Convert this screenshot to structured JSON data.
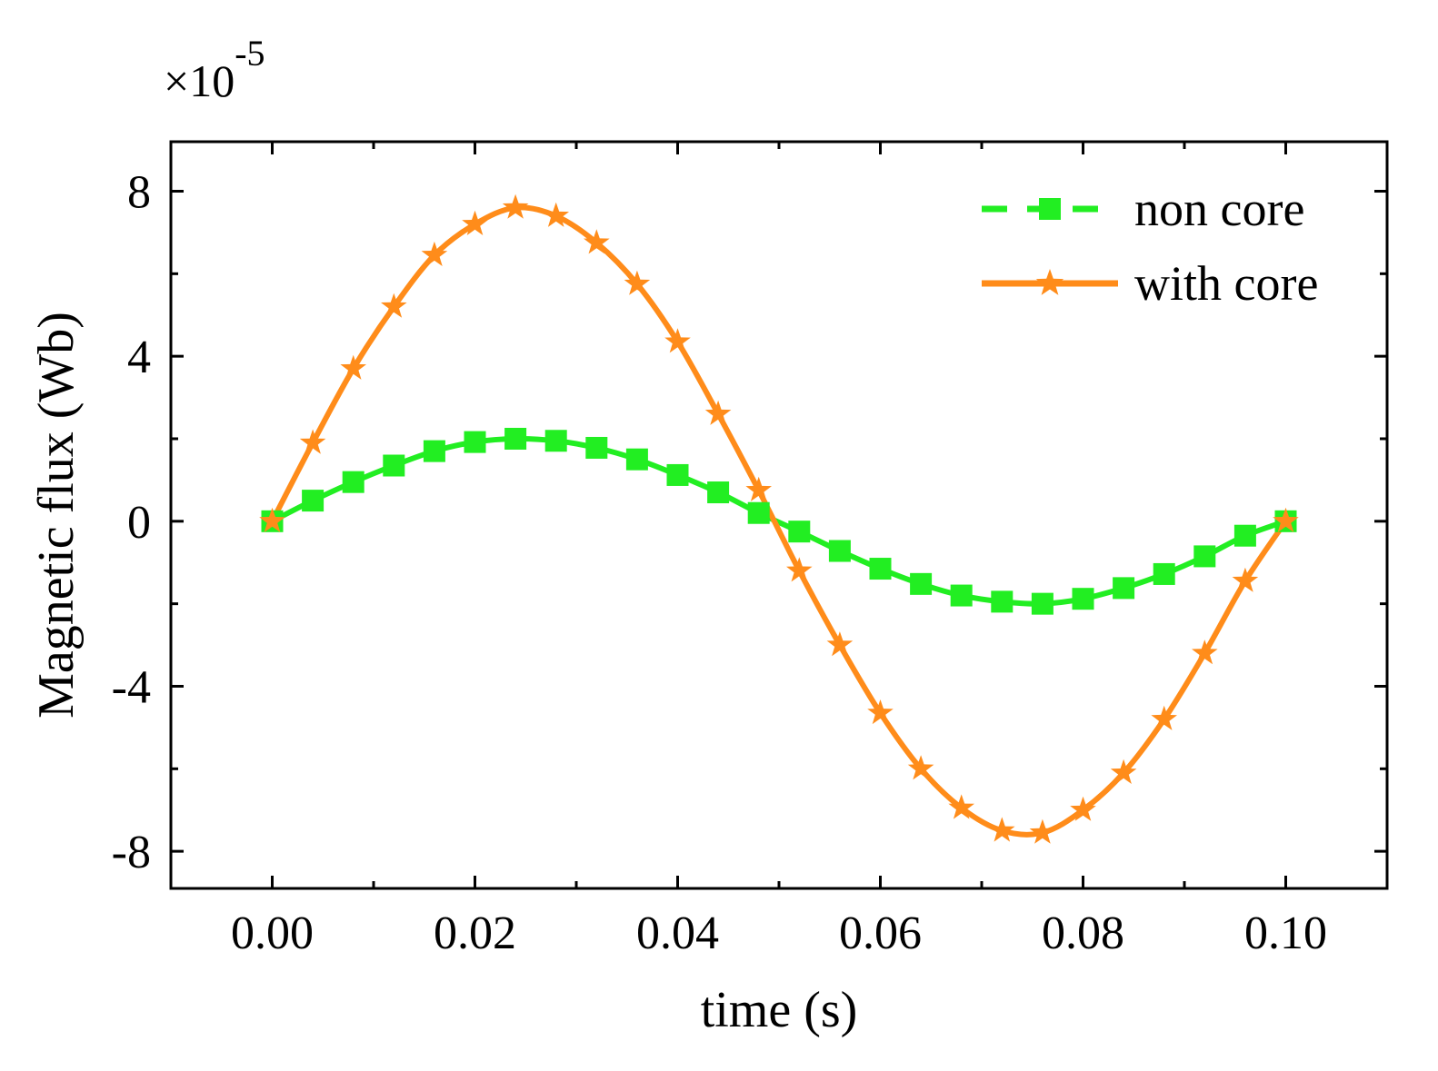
{
  "chart_data": {
    "type": "line",
    "title": "",
    "xlabel": "time (s)",
    "ylabel": "Magnetic flux  (Wb)",
    "y_multiplier": {
      "base": "×10",
      "exponent": "-5"
    },
    "xlim": [
      -0.01,
      0.11
    ],
    "ylim": [
      -8.9,
      9.2
    ],
    "x_ticks": [
      0.0,
      0.02,
      0.04,
      0.06,
      0.08,
      0.1
    ],
    "x_tick_labels": [
      "0.00",
      "0.02",
      "0.04",
      "0.06",
      "0.08",
      "0.10"
    ],
    "x_minor_ticks": [
      -0.01,
      0.01,
      0.03,
      0.05,
      0.07,
      0.09,
      0.11
    ],
    "y_ticks": [
      -8,
      -4,
      0,
      4,
      8
    ],
    "y_tick_labels": [
      "-8",
      "-4",
      "0",
      "4",
      "8"
    ],
    "y_minor_ticks": [
      -6,
      -2,
      2,
      6
    ],
    "grid": false,
    "legend_position": "top-right",
    "x": [
      0.0,
      0.004,
      0.008,
      0.012,
      0.016,
      0.02,
      0.024,
      0.028,
      0.032,
      0.036,
      0.04,
      0.044,
      0.048,
      0.052,
      0.056,
      0.06,
      0.064,
      0.068,
      0.072,
      0.076,
      0.08,
      0.084,
      0.088,
      0.092,
      0.096,
      0.1
    ],
    "series": [
      {
        "name": "non core",
        "color": "#22ee22",
        "line_style": "dashed-legend solid-curve",
        "marker": "square",
        "values": [
          0.0,
          0.5,
          0.95,
          1.35,
          1.7,
          1.92,
          2.0,
          1.95,
          1.78,
          1.5,
          1.12,
          0.7,
          0.2,
          -0.25,
          -0.72,
          -1.15,
          -1.52,
          -1.8,
          -1.95,
          -2.0,
          -1.88,
          -1.62,
          -1.28,
          -0.85,
          -0.35,
          0.0
        ]
      },
      {
        "name": "with core",
        "color": "#ff8c1a",
        "line_style": "solid",
        "marker": "star",
        "values": [
          0.0,
          1.9,
          3.7,
          5.2,
          6.45,
          7.2,
          7.6,
          7.4,
          6.75,
          5.75,
          4.35,
          2.6,
          0.75,
          -1.2,
          -3.0,
          -4.65,
          -6.0,
          -6.95,
          -7.5,
          -7.55,
          -7.0,
          -6.1,
          -4.8,
          -3.2,
          -1.45,
          0.0
        ]
      }
    ]
  }
}
